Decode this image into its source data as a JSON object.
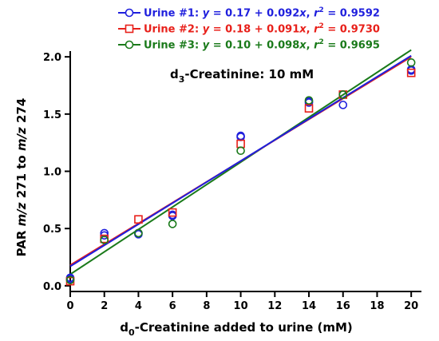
{
  "chart_data": {
    "type": "scatter",
    "annotation": "d3-Creatinine: 10 mM",
    "xlabel": "d0-Creatinine added to urine (mM)",
    "ylabel": "PAR m/z 271 to m/z 274",
    "xlim": [
      0,
      20.6
    ],
    "ylim": [
      -0.05,
      2.05
    ],
    "x_ticks": [
      0,
      2,
      4,
      6,
      8,
      10,
      12,
      14,
      16,
      18,
      20
    ],
    "x_tick_labels": [
      "0",
      "2",
      "4",
      "6",
      "8",
      "10",
      "12",
      "14",
      "16",
      "18",
      "20"
    ],
    "y_ticks": [
      0,
      0.5,
      1.0,
      1.5,
      2.0
    ],
    "y_tick_labels": [
      "0.0",
      "0.5",
      "1.0",
      "1.5",
      "2.0"
    ],
    "grid": false,
    "legend_position": "top",
    "series": [
      {
        "name": "Urine #1",
        "equation": "y = 0.17 + 0.092x, r2 = 0.9592",
        "color": "#1f1fdd",
        "marker": "circle",
        "fit": {
          "intercept": 0.17,
          "slope": 0.092
        },
        "x": [
          0,
          0,
          2,
          2,
          4,
          4,
          6,
          6,
          10,
          10,
          14,
          14,
          16,
          16,
          20,
          20
        ],
        "y": [
          0.06,
          0.07,
          0.46,
          0.44,
          0.45,
          0.46,
          0.61,
          0.62,
          1.31,
          1.3,
          1.6,
          1.61,
          1.58,
          1.67,
          1.88,
          1.89
        ]
      },
      {
        "name": "Urine #2",
        "equation": "y = 0.18 + 0.091x, r2 = 0.9730",
        "color": "#e8201a",
        "marker": "square",
        "fit": {
          "intercept": 0.18,
          "slope": 0.091
        },
        "x": [
          0,
          2,
          4,
          6,
          10,
          14,
          16,
          20
        ],
        "y": [
          0.04,
          0.41,
          0.58,
          0.64,
          1.24,
          1.55,
          1.67,
          1.86
        ]
      },
      {
        "name": "Urine #3",
        "equation": "y = 0.10 + 0.098x, r2 = 0.9695",
        "color": "#1a7a1a",
        "marker": "circle",
        "fit": {
          "intercept": 0.1,
          "slope": 0.098
        },
        "x": [
          0,
          2,
          4,
          6,
          10,
          14,
          16,
          20
        ],
        "y": [
          0.05,
          0.4,
          0.46,
          0.54,
          1.18,
          1.62,
          1.67,
          1.95
        ]
      }
    ]
  }
}
